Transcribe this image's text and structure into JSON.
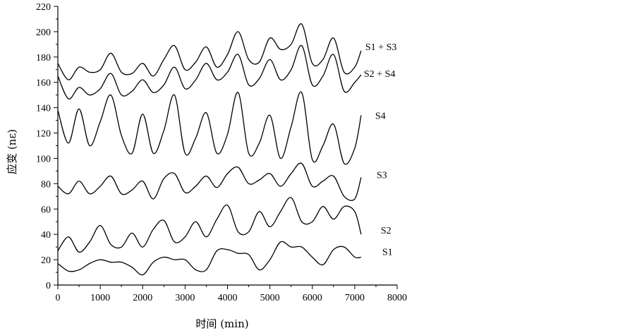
{
  "chart_data": {
    "type": "line",
    "title": "",
    "xlabel": "时间 (min)",
    "ylabel": "应变 (nε)",
    "xlim": [
      0,
      8000
    ],
    "ylim": [
      0,
      220
    ],
    "xticks": [
      0,
      1000,
      2000,
      3000,
      4000,
      5000,
      6000,
      7000,
      8000
    ],
    "yticks": [
      0,
      20,
      40,
      60,
      80,
      100,
      120,
      140,
      160,
      180,
      200,
      220
    ],
    "grid": false,
    "legend": "inline-right",
    "x": [
      0,
      250,
      500,
      750,
      1000,
      1250,
      1500,
      1750,
      2000,
      2250,
      2500,
      2750,
      3000,
      3250,
      3500,
      3750,
      4000,
      4250,
      4500,
      4750,
      5000,
      5250,
      5500,
      5750,
      6000,
      6250,
      6500,
      6750,
      7000,
      7150
    ],
    "series": [
      {
        "name": "S1",
        "values": [
          17,
          11,
          12,
          17,
          20,
          18,
          18,
          14,
          8,
          18,
          22,
          20,
          20,
          12,
          12,
          27,
          28,
          25,
          24,
          12,
          20,
          34,
          30,
          30,
          22,
          16,
          28,
          30,
          22,
          22
        ]
      },
      {
        "name": "S2",
        "values": [
          27,
          38,
          26,
          34,
          47,
          32,
          30,
          41,
          30,
          44,
          51,
          34,
          38,
          50,
          38,
          52,
          63,
          42,
          42,
          58,
          46,
          58,
          69,
          50,
          50,
          62,
          52,
          62,
          58,
          40
        ]
      },
      {
        "name": "S3",
        "values": [
          78,
          72,
          82,
          72,
          78,
          86,
          72,
          75,
          82,
          68,
          84,
          88,
          73,
          78,
          86,
          77,
          88,
          93,
          80,
          83,
          88,
          78,
          88,
          96,
          78,
          82,
          86,
          70,
          68,
          85
        ]
      },
      {
        "name": "S4",
        "values": [
          138,
          112,
          139,
          110,
          129,
          150,
          118,
          104,
          135,
          104,
          122,
          150,
          104,
          116,
          136,
          104,
          119,
          152,
          104,
          112,
          134,
          100,
          125,
          152,
          99,
          110,
          127,
          96,
          108,
          134
        ]
      },
      {
        "name": "S2 + S4",
        "values": [
          165,
          147,
          156,
          150,
          155,
          167,
          150,
          153,
          162,
          152,
          158,
          172,
          155,
          162,
          175,
          162,
          168,
          182,
          158,
          163,
          178,
          162,
          170,
          189,
          158,
          165,
          182,
          153,
          160,
          166
        ]
      },
      {
        "name": "S1 + S3",
        "values": [
          175,
          162,
          172,
          168,
          170,
          183,
          168,
          167,
          175,
          165,
          178,
          189,
          170,
          176,
          188,
          172,
          182,
          200,
          178,
          176,
          195,
          186,
          190,
          206,
          175,
          178,
          195,
          168,
          172,
          185
        ]
      }
    ]
  }
}
